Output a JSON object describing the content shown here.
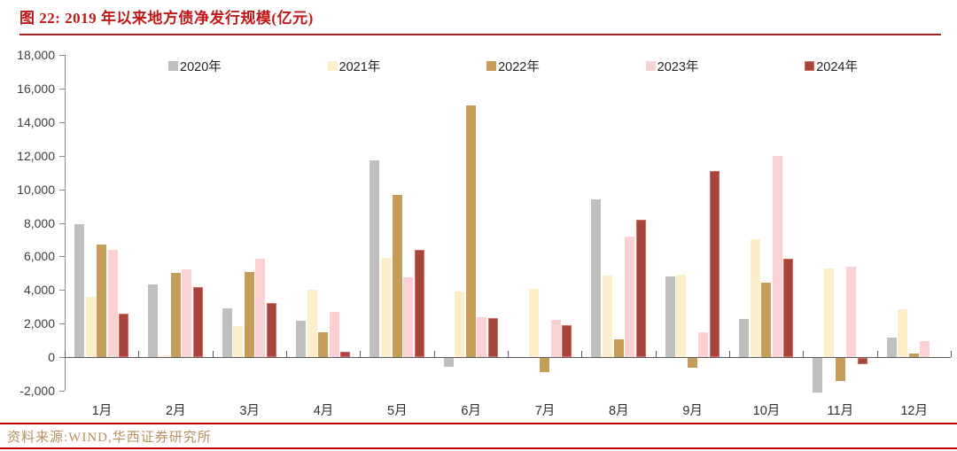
{
  "figure": {
    "title": "图 22: 2019 年以来地方债净发行规模(亿元)",
    "source": "资料来源:WIND,华西证券研究所"
  },
  "chart_data": {
    "type": "bar",
    "title": "图 22: 2019 年以来地方债净发行规模(亿元)",
    "unit": "亿元",
    "categories": [
      "1月",
      "2月",
      "3月",
      "4月",
      "5月",
      "6月",
      "7月",
      "8月",
      "9月",
      "10月",
      "11月",
      "12月"
    ],
    "series": [
      {
        "name": "2020年",
        "color": "#bfbfbf",
        "border": "#bfbfbf",
        "values": [
          7900,
          4350,
          2900,
          2150,
          11700,
          -500,
          0,
          9400,
          4800,
          2250,
          -2050,
          1150
        ]
      },
      {
        "name": "2021年",
        "color": "#fcedcb",
        "border": "#fcedcb",
        "values": [
          3600,
          100,
          1850,
          4000,
          5900,
          3900,
          4050,
          4850,
          4900,
          7000,
          5300,
          2850
        ]
      },
      {
        "name": "2022年",
        "color": "#c79b58",
        "border": "#c79b58",
        "values": [
          6700,
          5000,
          5050,
          1500,
          9650,
          15000,
          -850,
          1050,
          -550,
          4450,
          -1350,
          200
        ]
      },
      {
        "name": "2023年",
        "color": "#fbd2d3",
        "border": "#fbd2d3",
        "values": [
          6400,
          5250,
          5850,
          2700,
          4750,
          2400,
          2200,
          7200,
          1500,
          12000,
          5400,
          950
        ]
      },
      {
        "name": "2024年",
        "color": "#a6453b",
        "border": "#d96c5f",
        "values": [
          2600,
          4150,
          3200,
          300,
          6400,
          2350,
          1900,
          8200,
          11100,
          5850,
          -350,
          0
        ]
      }
    ],
    "ylim": [
      -2000,
      18000
    ],
    "ytick_step": 2000,
    "y_tick_labels": [
      "18,000",
      "16,000",
      "14,000",
      "12,000",
      "10,000",
      "8,000",
      "6,000",
      "4,000",
      "2,000",
      "0",
      "-2,000"
    ],
    "legend_position": "top",
    "grid": false,
    "xlabel": "",
    "ylabel": ""
  }
}
